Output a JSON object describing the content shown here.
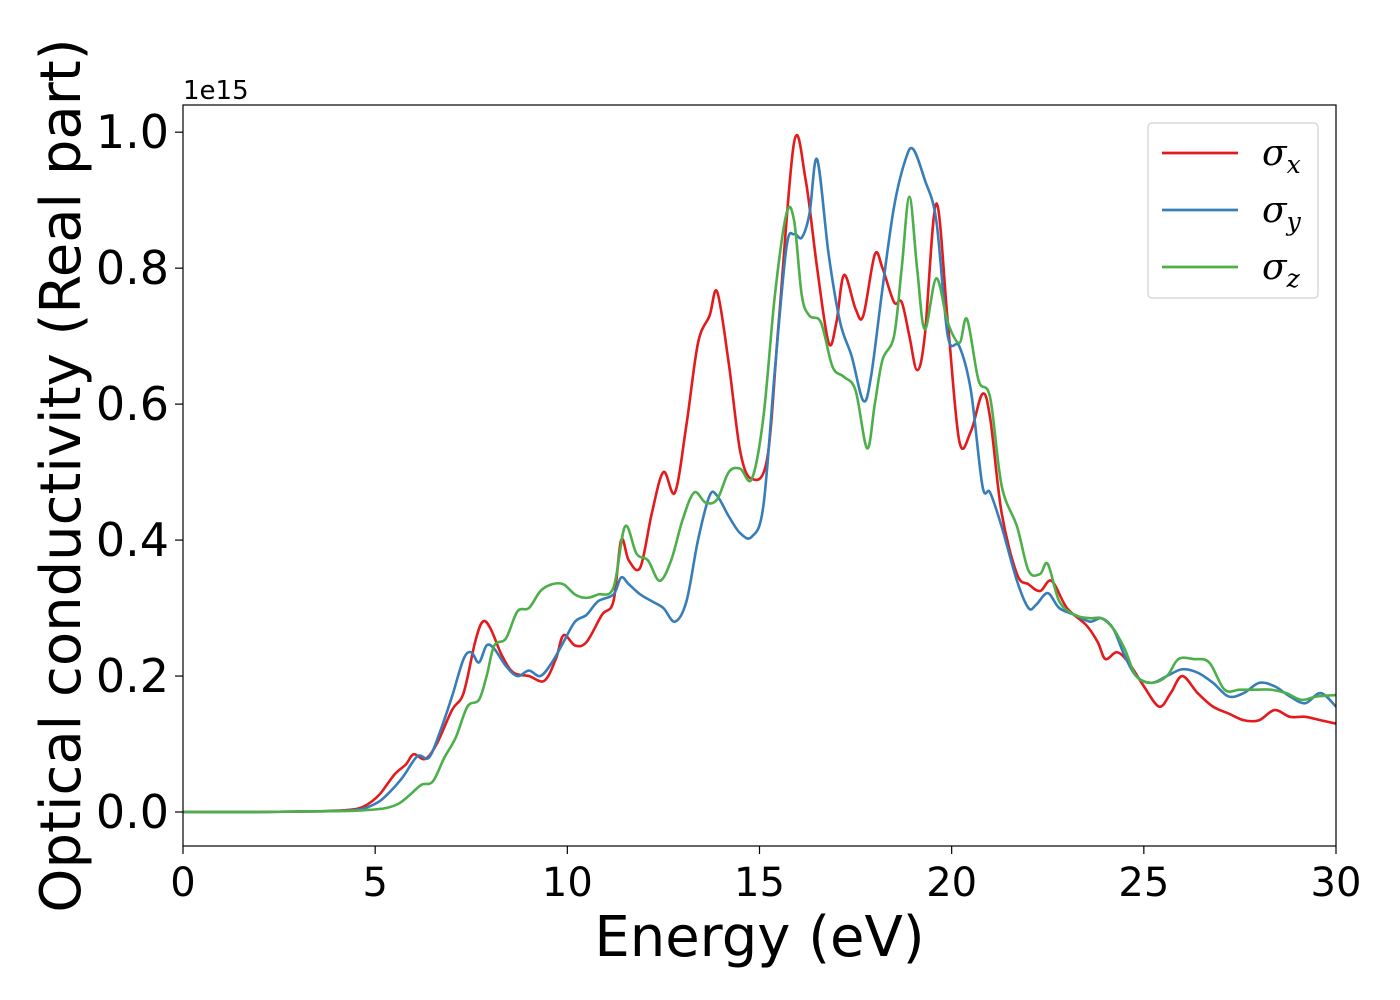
{
  "chart_data": {
    "type": "line",
    "title": "",
    "xlabel": "Energy (eV)",
    "ylabel": "Optical conductivity (Real part)",
    "y_offset_label": "1e15",
    "y_scale_factor": 1000000000000000.0,
    "xlim": [
      0,
      30
    ],
    "ylim": [
      -0.05,
      1.04
    ],
    "x_ticks": [
      0,
      5,
      10,
      15,
      20,
      25,
      30
    ],
    "x_tick_labels": [
      "0",
      "5",
      "10",
      "15",
      "20",
      "25",
      "30"
    ],
    "y_ticks": [
      0.0,
      0.2,
      0.4,
      0.6,
      0.8,
      1.0
    ],
    "y_tick_labels": [
      "0.0",
      "0.2",
      "0.4",
      "0.6",
      "0.8",
      "1.0"
    ],
    "grid": false,
    "legend_position": "top-right",
    "series": [
      {
        "name": "σ",
        "subscript": "x",
        "color": "#e41a1c",
        "points": [
          [
            0,
            0
          ],
          [
            2,
            0
          ],
          [
            3.5,
            0.001
          ],
          [
            4.3,
            0.003
          ],
          [
            4.7,
            0.008
          ],
          [
            5.1,
            0.025
          ],
          [
            5.5,
            0.055
          ],
          [
            5.8,
            0.07
          ],
          [
            6.0,
            0.085
          ],
          [
            6.3,
            0.078
          ],
          [
            6.6,
            0.1
          ],
          [
            7.0,
            0.15
          ],
          [
            7.3,
            0.175
          ],
          [
            7.6,
            0.25
          ],
          [
            7.8,
            0.28
          ],
          [
            8.0,
            0.27
          ],
          [
            8.3,
            0.23
          ],
          [
            8.6,
            0.205
          ],
          [
            9.0,
            0.2
          ],
          [
            9.4,
            0.193
          ],
          [
            9.7,
            0.225
          ],
          [
            9.9,
            0.26
          ],
          [
            10.2,
            0.245
          ],
          [
            10.5,
            0.25
          ],
          [
            10.9,
            0.29
          ],
          [
            11.2,
            0.31
          ],
          [
            11.4,
            0.4
          ],
          [
            11.6,
            0.37
          ],
          [
            11.9,
            0.36
          ],
          [
            12.2,
            0.44
          ],
          [
            12.5,
            0.5
          ],
          [
            12.8,
            0.47
          ],
          [
            13.1,
            0.57
          ],
          [
            13.4,
            0.69
          ],
          [
            13.7,
            0.73
          ],
          [
            13.9,
            0.765
          ],
          [
            14.2,
            0.66
          ],
          [
            14.5,
            0.53
          ],
          [
            14.8,
            0.49
          ],
          [
            15.2,
            0.52
          ],
          [
            15.5,
            0.72
          ],
          [
            15.9,
            0.985
          ],
          [
            16.2,
            0.93
          ],
          [
            16.5,
            0.8
          ],
          [
            16.8,
            0.69
          ],
          [
            17.0,
            0.72
          ],
          [
            17.2,
            0.79
          ],
          [
            17.5,
            0.74
          ],
          [
            17.7,
            0.73
          ],
          [
            18.0,
            0.82
          ],
          [
            18.2,
            0.8
          ],
          [
            18.5,
            0.75
          ],
          [
            18.7,
            0.75
          ],
          [
            18.9,
            0.7
          ],
          [
            19.1,
            0.65
          ],
          [
            19.3,
            0.7
          ],
          [
            19.6,
            0.895
          ],
          [
            19.9,
            0.72
          ],
          [
            20.2,
            0.545
          ],
          [
            20.5,
            0.56
          ],
          [
            20.8,
            0.615
          ],
          [
            21.0,
            0.58
          ],
          [
            21.3,
            0.44
          ],
          [
            21.7,
            0.35
          ],
          [
            22.0,
            0.335
          ],
          [
            22.3,
            0.325
          ],
          [
            22.6,
            0.34
          ],
          [
            23.0,
            0.3
          ],
          [
            23.5,
            0.275
          ],
          [
            23.8,
            0.25
          ],
          [
            24.0,
            0.225
          ],
          [
            24.3,
            0.235
          ],
          [
            24.6,
            0.22
          ],
          [
            25.0,
            0.185
          ],
          [
            25.4,
            0.155
          ],
          [
            25.7,
            0.175
          ],
          [
            26.0,
            0.2
          ],
          [
            26.4,
            0.175
          ],
          [
            26.8,
            0.155
          ],
          [
            27.2,
            0.145
          ],
          [
            27.6,
            0.135
          ],
          [
            28.0,
            0.135
          ],
          [
            28.4,
            0.15
          ],
          [
            28.8,
            0.14
          ],
          [
            29.2,
            0.14
          ],
          [
            29.6,
            0.135
          ],
          [
            30,
            0.13
          ]
        ]
      },
      {
        "name": "σ",
        "subscript": "y",
        "color": "#377eb8",
        "points": [
          [
            0,
            0
          ],
          [
            2,
            0
          ],
          [
            3.5,
            0.001
          ],
          [
            4.5,
            0.003
          ],
          [
            5.0,
            0.012
          ],
          [
            5.3,
            0.025
          ],
          [
            5.7,
            0.05
          ],
          [
            6.1,
            0.082
          ],
          [
            6.4,
            0.08
          ],
          [
            6.7,
            0.12
          ],
          [
            7.0,
            0.17
          ],
          [
            7.3,
            0.225
          ],
          [
            7.5,
            0.235
          ],
          [
            7.7,
            0.22
          ],
          [
            7.9,
            0.245
          ],
          [
            8.1,
            0.24
          ],
          [
            8.4,
            0.215
          ],
          [
            8.7,
            0.2
          ],
          [
            9.0,
            0.208
          ],
          [
            9.3,
            0.2
          ],
          [
            9.6,
            0.22
          ],
          [
            9.9,
            0.25
          ],
          [
            10.2,
            0.28
          ],
          [
            10.5,
            0.29
          ],
          [
            10.8,
            0.31
          ],
          [
            11.2,
            0.32
          ],
          [
            11.4,
            0.345
          ],
          [
            11.6,
            0.335
          ],
          [
            11.9,
            0.32
          ],
          [
            12.2,
            0.31
          ],
          [
            12.5,
            0.3
          ],
          [
            12.8,
            0.28
          ],
          [
            13.1,
            0.31
          ],
          [
            13.4,
            0.4
          ],
          [
            13.7,
            0.465
          ],
          [
            13.9,
            0.465
          ],
          [
            14.2,
            0.435
          ],
          [
            14.5,
            0.41
          ],
          [
            14.8,
            0.405
          ],
          [
            15.1,
            0.45
          ],
          [
            15.4,
            0.65
          ],
          [
            15.7,
            0.83
          ],
          [
            15.9,
            0.85
          ],
          [
            16.1,
            0.845
          ],
          [
            16.3,
            0.88
          ],
          [
            16.5,
            0.96
          ],
          [
            16.8,
            0.82
          ],
          [
            17.1,
            0.72
          ],
          [
            17.4,
            0.67
          ],
          [
            17.7,
            0.605
          ],
          [
            17.9,
            0.64
          ],
          [
            18.2,
            0.77
          ],
          [
            18.5,
            0.89
          ],
          [
            18.8,
            0.96
          ],
          [
            19.0,
            0.975
          ],
          [
            19.3,
            0.93
          ],
          [
            19.6,
            0.87
          ],
          [
            19.9,
            0.7
          ],
          [
            20.2,
            0.685
          ],
          [
            20.5,
            0.62
          ],
          [
            20.8,
            0.48
          ],
          [
            21.0,
            0.47
          ],
          [
            21.3,
            0.42
          ],
          [
            21.7,
            0.34
          ],
          [
            22.0,
            0.3
          ],
          [
            22.2,
            0.305
          ],
          [
            22.5,
            0.322
          ],
          [
            22.8,
            0.3
          ],
          [
            23.2,
            0.29
          ],
          [
            23.6,
            0.28
          ],
          [
            23.9,
            0.285
          ],
          [
            24.2,
            0.27
          ],
          [
            24.5,
            0.23
          ],
          [
            24.8,
            0.2
          ],
          [
            25.2,
            0.19
          ],
          [
            25.6,
            0.2
          ],
          [
            26.0,
            0.21
          ],
          [
            26.4,
            0.205
          ],
          [
            26.8,
            0.19
          ],
          [
            27.2,
            0.17
          ],
          [
            27.6,
            0.175
          ],
          [
            28.0,
            0.19
          ],
          [
            28.4,
            0.185
          ],
          [
            28.8,
            0.17
          ],
          [
            29.2,
            0.16
          ],
          [
            29.6,
            0.175
          ],
          [
            30,
            0.155
          ]
        ]
      },
      {
        "name": "σ",
        "subscript": "z",
        "color": "#4daf4a",
        "points": [
          [
            0,
            0
          ],
          [
            2,
            0
          ],
          [
            3.5,
            0.001
          ],
          [
            4.5,
            0.002
          ],
          [
            5.2,
            0.005
          ],
          [
            5.6,
            0.012
          ],
          [
            5.9,
            0.025
          ],
          [
            6.2,
            0.04
          ],
          [
            6.5,
            0.045
          ],
          [
            6.8,
            0.08
          ],
          [
            7.1,
            0.11
          ],
          [
            7.4,
            0.155
          ],
          [
            7.7,
            0.165
          ],
          [
            7.9,
            0.2
          ],
          [
            8.1,
            0.245
          ],
          [
            8.4,
            0.255
          ],
          [
            8.7,
            0.295
          ],
          [
            9.0,
            0.3
          ],
          [
            9.3,
            0.325
          ],
          [
            9.6,
            0.335
          ],
          [
            9.9,
            0.335
          ],
          [
            10.2,
            0.32
          ],
          [
            10.5,
            0.315
          ],
          [
            10.8,
            0.32
          ],
          [
            11.2,
            0.33
          ],
          [
            11.5,
            0.42
          ],
          [
            11.8,
            0.38
          ],
          [
            12.1,
            0.37
          ],
          [
            12.4,
            0.34
          ],
          [
            12.7,
            0.37
          ],
          [
            13.0,
            0.43
          ],
          [
            13.3,
            0.47
          ],
          [
            13.6,
            0.455
          ],
          [
            13.9,
            0.46
          ],
          [
            14.2,
            0.5
          ],
          [
            14.5,
            0.505
          ],
          [
            14.8,
            0.49
          ],
          [
            15.1,
            0.58
          ],
          [
            15.4,
            0.76
          ],
          [
            15.7,
            0.88
          ],
          [
            15.9,
            0.87
          ],
          [
            16.1,
            0.76
          ],
          [
            16.3,
            0.73
          ],
          [
            16.6,
            0.72
          ],
          [
            16.9,
            0.655
          ],
          [
            17.2,
            0.64
          ],
          [
            17.5,
            0.62
          ],
          [
            17.8,
            0.535
          ],
          [
            18.0,
            0.6
          ],
          [
            18.2,
            0.665
          ],
          [
            18.5,
            0.7
          ],
          [
            18.7,
            0.8
          ],
          [
            18.9,
            0.905
          ],
          [
            19.1,
            0.8
          ],
          [
            19.3,
            0.71
          ],
          [
            19.6,
            0.785
          ],
          [
            19.9,
            0.72
          ],
          [
            20.2,
            0.69
          ],
          [
            20.4,
            0.725
          ],
          [
            20.7,
            0.635
          ],
          [
            21.0,
            0.61
          ],
          [
            21.3,
            0.48
          ],
          [
            21.7,
            0.42
          ],
          [
            22.0,
            0.355
          ],
          [
            22.3,
            0.35
          ],
          [
            22.5,
            0.365
          ],
          [
            22.8,
            0.31
          ],
          [
            23.2,
            0.29
          ],
          [
            23.6,
            0.285
          ],
          [
            23.9,
            0.285
          ],
          [
            24.2,
            0.27
          ],
          [
            24.5,
            0.24
          ],
          [
            24.8,
            0.2
          ],
          [
            25.2,
            0.19
          ],
          [
            25.6,
            0.2
          ],
          [
            25.9,
            0.225
          ],
          [
            26.3,
            0.225
          ],
          [
            26.7,
            0.22
          ],
          [
            27.1,
            0.18
          ],
          [
            27.5,
            0.18
          ],
          [
            27.9,
            0.18
          ],
          [
            28.3,
            0.18
          ],
          [
            28.7,
            0.175
          ],
          [
            29.1,
            0.165
          ],
          [
            29.5,
            0.17
          ],
          [
            30,
            0.172
          ]
        ]
      }
    ]
  }
}
